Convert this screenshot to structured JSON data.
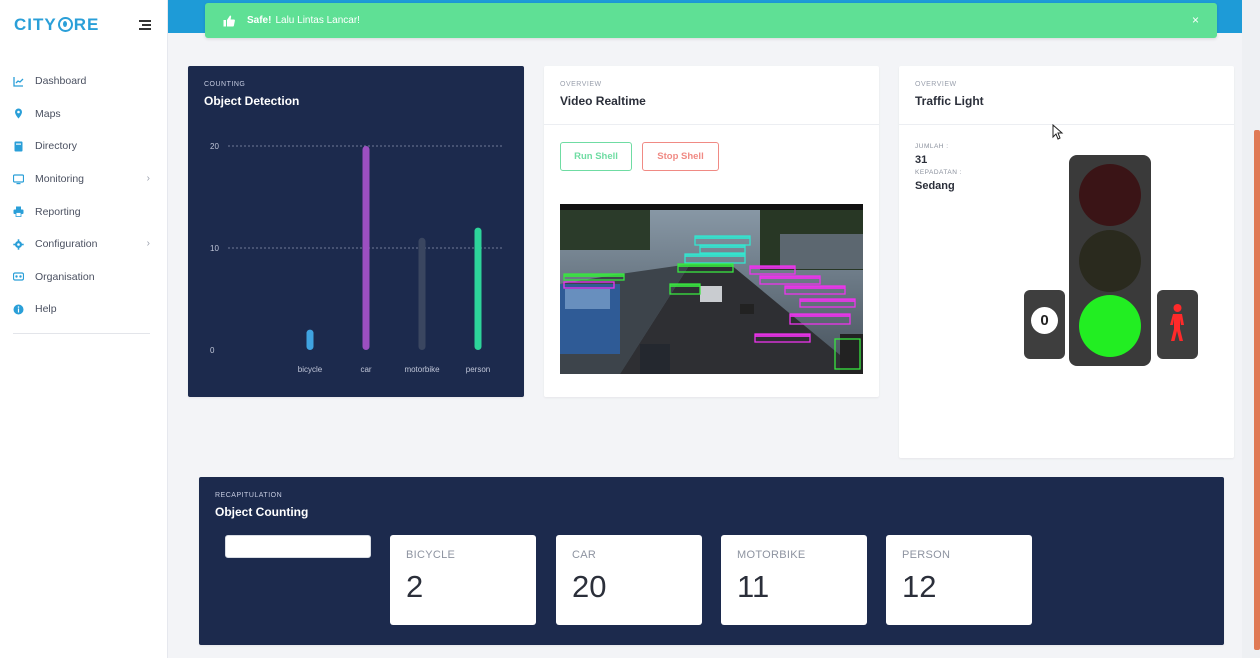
{
  "app": {
    "logo_text_1": "CITY",
    "logo_text_2": "RE"
  },
  "sidebar": {
    "items": [
      {
        "label": "Dashboard",
        "icon": "chart-line-icon",
        "has_submenu": false
      },
      {
        "label": "Maps",
        "icon": "map-pin-icon",
        "has_submenu": false
      },
      {
        "label": "Directory",
        "icon": "book-icon",
        "has_submenu": false
      },
      {
        "label": "Monitoring",
        "icon": "monitor-icon",
        "has_submenu": true
      },
      {
        "label": "Reporting",
        "icon": "printer-icon",
        "has_submenu": false
      },
      {
        "label": "Configuration",
        "icon": "gear-icon",
        "has_submenu": true
      },
      {
        "label": "Organisation",
        "icon": "sitemap-icon",
        "has_submenu": false
      },
      {
        "label": "Help",
        "icon": "info-icon",
        "has_submenu": false
      }
    ]
  },
  "alert": {
    "strong": "Safe!",
    "message": "Lalu Lintas Lancar!",
    "close": "×"
  },
  "chart_card": {
    "subtitle": "COUNTING",
    "title": "Object Detection"
  },
  "chart_data": {
    "type": "bar",
    "categories": [
      "bicycle",
      "car",
      "motorbike",
      "person"
    ],
    "values": [
      2,
      20,
      11,
      12
    ],
    "colors": [
      "#3fa3e0",
      "#9b4fc0",
      "#3a4660",
      "#2dd49a"
    ],
    "yticks": [
      0,
      10,
      20
    ],
    "ylim": [
      0,
      20
    ],
    "grid": true
  },
  "video_card": {
    "subtitle": "OVERVIEW",
    "title": "Video Realtime",
    "run_label": "Run Shell",
    "stop_label": "Stop Shell"
  },
  "traffic_card": {
    "subtitle": "OVERVIEW",
    "title": "Traffic Light",
    "jumlah_label": "JUMLAH :",
    "jumlah_value": "31",
    "kepadatan_label": "KEPADATAN :",
    "kepadatan_value": "Sedang",
    "counter": "0",
    "active_light": "green",
    "colors": {
      "red_off": "#3a1416",
      "yellow_off": "#2a2a1e",
      "green_on": "#22ee22",
      "pedestrian": "#ff2a2a"
    }
  },
  "recap": {
    "subtitle": "RECAPITULATION",
    "title": "Object Counting",
    "stats": [
      {
        "label": "BICYCLE",
        "value": "2"
      },
      {
        "label": "CAR",
        "value": "20"
      },
      {
        "label": "MOTORBIKE",
        "value": "11"
      },
      {
        "label": "PERSON",
        "value": "12"
      }
    ]
  }
}
